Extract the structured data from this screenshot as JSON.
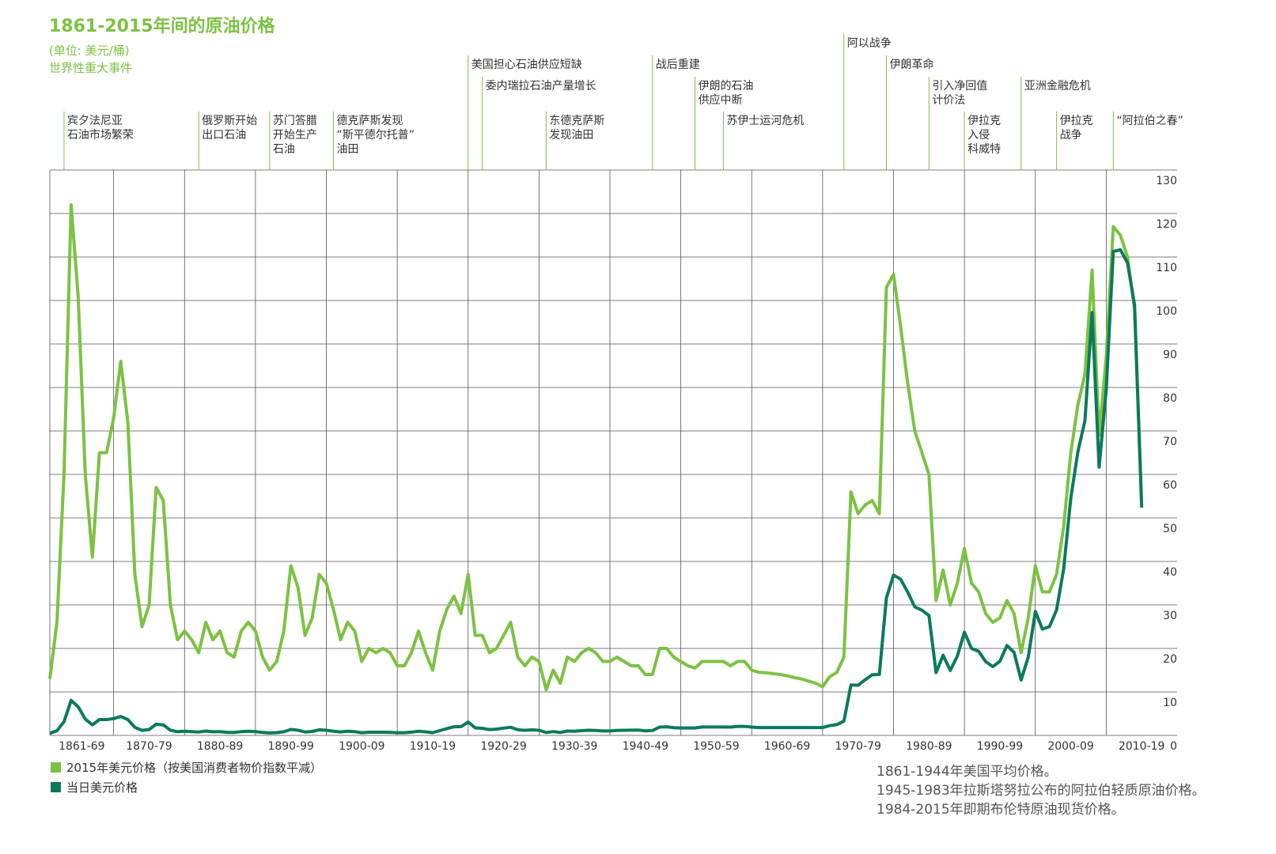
{
  "chart_data": {
    "type": "line",
    "title": "1861-2015年间的原油价格",
    "subtitle": "(单位: 美元/桶)",
    "events_heading": "世界性重大事件",
    "x": [
      1861,
      1862,
      1863,
      1864,
      1865,
      1866,
      1867,
      1868,
      1869,
      1870,
      1871,
      1872,
      1873,
      1874,
      1875,
      1876,
      1877,
      1878,
      1879,
      1880,
      1881,
      1882,
      1883,
      1884,
      1885,
      1886,
      1887,
      1888,
      1889,
      1890,
      1891,
      1892,
      1893,
      1894,
      1895,
      1896,
      1897,
      1898,
      1899,
      1900,
      1901,
      1902,
      1903,
      1904,
      1905,
      1906,
      1907,
      1908,
      1909,
      1910,
      1911,
      1912,
      1913,
      1914,
      1915,
      1916,
      1917,
      1918,
      1919,
      1920,
      1921,
      1922,
      1923,
      1924,
      1925,
      1926,
      1927,
      1928,
      1929,
      1930,
      1931,
      1932,
      1933,
      1934,
      1935,
      1936,
      1937,
      1938,
      1939,
      1940,
      1941,
      1942,
      1943,
      1944,
      1945,
      1946,
      1947,
      1948,
      1949,
      1950,
      1951,
      1952,
      1953,
      1954,
      1955,
      1956,
      1957,
      1958,
      1959,
      1960,
      1961,
      1962,
      1963,
      1964,
      1965,
      1966,
      1967,
      1968,
      1969,
      1970,
      1971,
      1972,
      1973,
      1974,
      1975,
      1976,
      1977,
      1978,
      1979,
      1980,
      1981,
      1982,
      1983,
      1984,
      1985,
      1986,
      1987,
      1988,
      1989,
      1990,
      1991,
      1992,
      1993,
      1994,
      1995,
      1996,
      1997,
      1998,
      1999,
      2000,
      2001,
      2002,
      2003,
      2004,
      2005,
      2006,
      2007,
      2008,
      2009,
      2010,
      2011,
      2012,
      2013,
      2014,
      2015
    ],
    "series": [
      {
        "name": "2015年美元价格（按美国消费者物价指数平减）",
        "color": "#7cc242",
        "values": [
          13,
          26,
          60,
          122,
          101,
          60,
          41,
          65,
          65,
          73,
          86,
          72,
          37,
          25,
          30,
          57,
          54,
          30,
          22,
          24,
          22,
          19,
          26,
          22,
          24,
          19,
          18,
          24,
          26,
          24,
          18,
          15,
          17,
          24,
          39,
          34,
          23,
          27,
          37,
          35,
          29,
          22,
          26,
          24,
          17,
          20,
          19,
          20,
          19,
          16,
          16,
          19,
          24,
          19,
          15,
          24,
          29,
          32,
          28,
          37,
          23,
          23,
          19,
          20,
          23,
          26,
          18,
          16,
          18,
          17,
          10.5,
          15,
          12,
          18,
          17,
          19,
          20,
          19,
          17,
          17,
          18,
          17,
          16,
          16,
          14,
          14,
          20,
          20,
          18,
          17,
          16,
          15.5,
          17,
          17,
          17,
          17,
          16,
          17,
          17,
          15,
          14.5,
          14.4,
          14.2,
          14,
          13.7,
          13.3,
          13,
          12.5,
          12,
          11.2,
          13.5,
          14.5,
          18,
          56,
          51,
          53,
          54,
          51,
          103,
          106,
          94,
          81,
          70,
          65,
          60,
          31,
          38,
          30,
          35,
          43,
          35,
          33,
          28,
          26,
          27,
          31,
          28,
          19,
          27,
          39,
          33,
          33,
          37,
          48,
          65,
          76,
          83,
          107,
          69,
          87,
          117,
          115,
          110,
          98,
          53
        ]
      },
      {
        "name": "当日美元价格",
        "color": "#0b7a5c",
        "values": [
          0.49,
          1.05,
          3.15,
          8.06,
          6.59,
          3.74,
          2.41,
          3.63,
          3.64,
          3.86,
          4.34,
          3.64,
          1.83,
          1.17,
          1.35,
          2.56,
          2.42,
          1.19,
          0.86,
          0.95,
          0.86,
          0.78,
          1.0,
          0.84,
          0.88,
          0.71,
          0.67,
          0.88,
          0.94,
          0.87,
          0.67,
          0.56,
          0.64,
          0.84,
          1.36,
          1.18,
          0.79,
          0.91,
          1.29,
          1.19,
          0.96,
          0.8,
          0.94,
          0.86,
          0.62,
          0.73,
          0.72,
          0.72,
          0.7,
          0.61,
          0.61,
          0.74,
          0.95,
          0.81,
          0.64,
          1.1,
          1.56,
          1.98,
          2.01,
          3.07,
          1.73,
          1.61,
          1.34,
          1.43,
          1.68,
          1.88,
          1.3,
          1.17,
          1.27,
          1.19,
          0.65,
          0.87,
          0.67,
          1.0,
          0.97,
          1.09,
          1.18,
          1.13,
          1.02,
          1.02,
          1.14,
          1.19,
          1.2,
          1.21,
          1.05,
          1.12,
          1.9,
          1.99,
          1.78,
          1.71,
          1.71,
          1.71,
          1.93,
          1.93,
          1.93,
          1.93,
          1.9,
          2.08,
          2.08,
          1.9,
          1.8,
          1.8,
          1.8,
          1.8,
          1.8,
          1.8,
          1.8,
          1.8,
          1.8,
          1.8,
          2.24,
          2.48,
          3.29,
          11.58,
          11.53,
          12.8,
          13.92,
          14.02,
          31.61,
          36.83,
          35.93,
          32.97,
          29.55,
          28.78,
          27.56,
          14.43,
          18.44,
          14.92,
          18.23,
          23.73,
          20.0,
          19.32,
          16.97,
          15.82,
          17.02,
          20.67,
          19.09,
          12.72,
          17.97,
          28.5,
          24.44,
          25.02,
          28.83,
          38.27,
          54.52,
          65.14,
          72.39,
          97.26,
          61.67,
          79.5,
          111.26,
          111.67,
          108.66,
          98.95,
          52.39
        ]
      }
    ],
    "xlim": [
      1861,
      2020
    ],
    "xticks": [
      {
        "value": 1861,
        "label": "1861-69"
      },
      {
        "value": 1870,
        "label": "1870-79"
      },
      {
        "value": 1880,
        "label": "1880-89"
      },
      {
        "value": 1890,
        "label": "1890-99"
      },
      {
        "value": 1900,
        "label": "1900-09"
      },
      {
        "value": 1910,
        "label": "1910-19"
      },
      {
        "value": 1920,
        "label": "1920-29"
      },
      {
        "value": 1930,
        "label": "1930-39"
      },
      {
        "value": 1940,
        "label": "1940-49"
      },
      {
        "value": 1950,
        "label": "1950-59"
      },
      {
        "value": 1960,
        "label": "1960-69"
      },
      {
        "value": 1970,
        "label": "1970-79"
      },
      {
        "value": 1980,
        "label": "1980-89"
      },
      {
        "value": 1990,
        "label": "1990-99"
      },
      {
        "value": 2000,
        "label": "2000-09"
      },
      {
        "value": 2010,
        "label": "2010-19"
      }
    ],
    "ylim": [
      0,
      130
    ],
    "yticks": [
      0,
      10,
      20,
      30,
      40,
      50,
      60,
      70,
      80,
      90,
      100,
      110,
      120,
      130
    ],
    "grid": true,
    "events": [
      {
        "x": 1863,
        "label": [
          "宾夕法尼亚",
          "石油市场繁荣"
        ]
      },
      {
        "x": 1882,
        "label": [
          "俄罗斯开始",
          "出口石油"
        ]
      },
      {
        "x": 1892,
        "label": [
          "苏门答腊",
          "开始生产",
          "石油"
        ]
      },
      {
        "x": 1901,
        "label": [
          "德克萨斯发现",
          "“斯平德尔托普”",
          "油田"
        ]
      },
      {
        "x": 1920,
        "label": [
          "美国担心石油供应短缺"
        ]
      },
      {
        "x": 1922,
        "label": [
          "委内瑞拉石油产量增长"
        ]
      },
      {
        "x": 1931,
        "label": [
          "东德克萨斯",
          "发现油田"
        ]
      },
      {
        "x": 1946,
        "label": [
          "战后重建"
        ]
      },
      {
        "x": 1952,
        "label": [
          "伊朗的石油",
          "供应中断"
        ]
      },
      {
        "x": 1956,
        "label": [
          "苏伊士运河危机"
        ]
      },
      {
        "x": 1973,
        "label": [
          "阿以战争"
        ]
      },
      {
        "x": 1979,
        "label": [
          "伊朗革命"
        ]
      },
      {
        "x": 1985,
        "label": [
          "引入净回值",
          "计价法"
        ]
      },
      {
        "x": 1990,
        "label": [
          "伊拉克",
          "入侵",
          "科威特"
        ]
      },
      {
        "x": 1998,
        "label": [
          "亚洲金融危机"
        ]
      },
      {
        "x": 2003,
        "label": [
          "伊拉克",
          "战争"
        ]
      },
      {
        "x": 2011,
        "label": [
          "“阿拉伯之春”"
        ]
      }
    ],
    "notes": [
      "1861-1944年美国平均价格。",
      "1945-1983年拉斯塔努拉公布的阿拉伯轻质原油价格。",
      "1984-2015年即期布伦特原油现货价格。"
    ]
  }
}
